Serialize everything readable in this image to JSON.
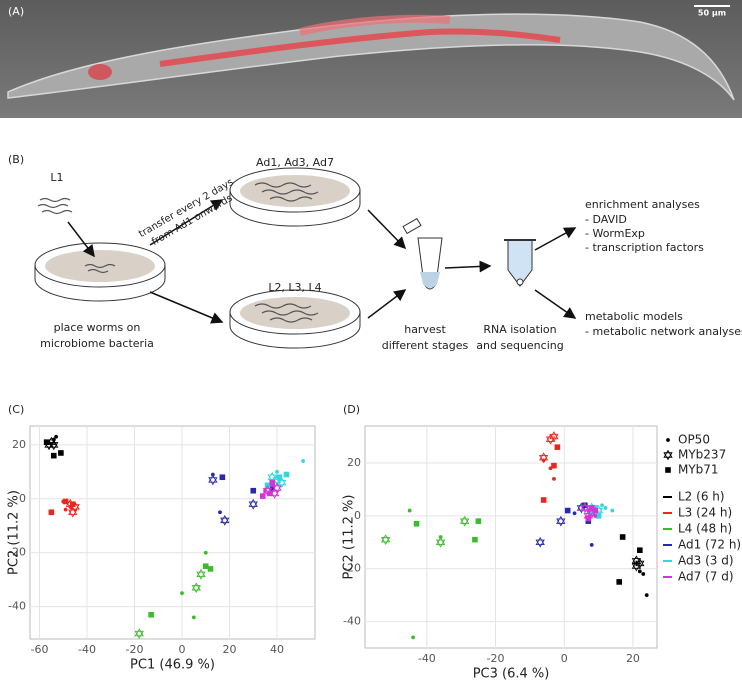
{
  "panel_a": {
    "label": "(A)",
    "scale_bar": "50 µm"
  },
  "panel_b": {
    "label": "(B)",
    "start_stage": "L1",
    "transfer": [
      "transfer every 2 days",
      "from Ad1 onwards"
    ],
    "adult_stages": "Ad1, Ad3, Ad7",
    "larval_stages": "L2, L3, L4",
    "place": [
      "place worms on",
      "microbiome bacteria"
    ],
    "harvest": [
      "harvest",
      "different stages"
    ],
    "rna": [
      "RNA isolation",
      "and sequencing"
    ],
    "enrichment": [
      "enrichment analyses",
      "- DAVID",
      "- WormExp",
      "- transcription factors"
    ],
    "metabolic": [
      "metabolic models",
      "- metabolic network analyses"
    ]
  },
  "chart_data": [
    {
      "type": "scatter",
      "label": "(C)",
      "x_label": "PC1 (46.9 %)",
      "y_label": "PC2 (11.2 %)",
      "xlim": [
        -64,
        56
      ],
      "ylim": [
        -52,
        27
      ],
      "xticks": [
        -60,
        -40,
        -20,
        0,
        20,
        40
      ],
      "yticks": [
        -40,
        -20,
        0,
        20
      ],
      "grid": true,
      "series": [
        {
          "color": "#000000",
          "x": [
            -57,
            -54,
            -53,
            -55,
            -56,
            -54,
            -54,
            -51,
            -57
          ],
          "y": [
            21,
            22,
            23,
            21,
            20,
            20,
            16,
            17,
            21
          ],
          "markers": [
            "OP50",
            "OP50",
            "OP50",
            "MYb237",
            "MYb237",
            "MYb237",
            "MYb71",
            "MYb71",
            "MYb71"
          ]
        },
        {
          "color": "#e8281e",
          "x": [
            -47,
            -49,
            -50,
            -45,
            -46,
            -47,
            -49,
            -55,
            -46
          ],
          "y": [
            -3,
            -4,
            -1,
            -3,
            -5,
            -2,
            -1,
            -5,
            -2
          ],
          "markers": [
            "OP50",
            "OP50",
            "OP50",
            "MYb237",
            "MYb237",
            "MYb237",
            "MYb71",
            "MYb71",
            "MYb71"
          ]
        },
        {
          "color": "#3cbb2c",
          "x": [
            0,
            5,
            10,
            -18,
            6,
            8,
            -13,
            10,
            12
          ],
          "y": [
            -35,
            -44,
            -20,
            -50,
            -33,
            -28,
            -43,
            -25,
            -26
          ],
          "markers": [
            "OP50",
            "OP50",
            "OP50",
            "MYb237",
            "MYb237",
            "MYb237",
            "MYb71",
            "MYb71",
            "MYb71"
          ]
        },
        {
          "color": "#2a2aa8",
          "x": [
            13,
            16,
            18,
            13,
            30,
            17,
            30,
            38
          ],
          "y": [
            9,
            -5,
            -8,
            7,
            -2,
            8,
            3,
            4
          ],
          "markers": [
            "OP50",
            "OP50",
            "MYb237",
            "MYb237",
            "MYb237",
            "MYb71",
            "MYb71",
            "MYb71"
          ]
        },
        {
          "color": "#33d6e0",
          "x": [
            40,
            51,
            44,
            38,
            40,
            42,
            36,
            41,
            44
          ],
          "y": [
            10,
            14,
            9,
            8,
            7,
            6,
            5,
            8,
            9
          ],
          "markers": [
            "OP50",
            "OP50",
            "OP50",
            "MYb237",
            "MYb237",
            "MYb237",
            "MYb71",
            "MYb71",
            "MYb71"
          ]
        },
        {
          "color": "#d633d6",
          "x": [
            35,
            38,
            36,
            39,
            40,
            37,
            34,
            38
          ],
          "y": [
            3,
            5,
            3,
            2,
            4,
            2,
            1,
            6
          ],
          "markers": [
            "OP50",
            "OP50",
            "MYb237",
            "MYb237",
            "MYb237",
            "MYb71",
            "MYb71",
            "MYb71"
          ]
        }
      ]
    },
    {
      "type": "scatter",
      "label": "(D)",
      "x_label": "PC3 (6.4 %)",
      "y_label": "PC2 (11.2 %)",
      "xlim": [
        -58,
        27
      ],
      "ylim": [
        -50,
        34
      ],
      "xticks": [
        -40,
        -20,
        0,
        20
      ],
      "yticks": [
        -40,
        -20,
        0,
        20
      ],
      "grid": true,
      "marker_legend": [
        {
          "name": "OP50",
          "marker": "dot"
        },
        {
          "name": "MYb237",
          "marker": "star"
        },
        {
          "name": "MYb71",
          "marker": "square"
        }
      ],
      "series": [
        {
          "name": "L2 (6 h)",
          "color": "#000000",
          "x": [
            22,
            24,
            23,
            21,
            21,
            22,
            17,
            22,
            16
          ],
          "y": [
            -21,
            -30,
            -22,
            -17,
            -19,
            -18,
            -8,
            -13,
            -25
          ],
          "markers": [
            "OP50",
            "OP50",
            "OP50",
            "MYb237",
            "MYb237",
            "MYb237",
            "MYb71",
            "MYb71",
            "MYb71"
          ]
        },
        {
          "name": "L3 (24 h)",
          "color": "#e8281e",
          "x": [
            -6,
            -4,
            -3,
            -4,
            -3,
            -6,
            -2,
            -3,
            -6
          ],
          "y": [
            21,
            18,
            14,
            29,
            30,
            22,
            26,
            19,
            6
          ],
          "markers": [
            "OP50",
            "OP50",
            "OP50",
            "MYb237",
            "MYb237",
            "MYb237",
            "MYb71",
            "MYb71",
            "MYb71"
          ]
        },
        {
          "name": "L4 (48 h)",
          "color": "#3cbb2c",
          "x": [
            -44,
            -45,
            -36,
            -52,
            -36,
            -29,
            -43,
            -25,
            -26
          ],
          "y": [
            -46,
            2,
            -8,
            -9,
            -10,
            -2,
            -3,
            -2,
            -9
          ],
          "markers": [
            "OP50",
            "OP50",
            "OP50",
            "MYb237",
            "MYb237",
            "MYb237",
            "MYb71",
            "MYb71",
            "MYb71"
          ]
        },
        {
          "name": "Ad1 (72 h)",
          "color": "#2a2aa8",
          "x": [
            8,
            3,
            -7,
            -1,
            5,
            1,
            7,
            6
          ],
          "y": [
            -11,
            1,
            -10,
            -2,
            3,
            2,
            -2,
            4
          ],
          "markers": [
            "OP50",
            "OP50",
            "MYb237",
            "MYb237",
            "MYb237",
            "MYb71",
            "MYb71",
            "MYb71"
          ]
        },
        {
          "name": "Ad3 (3 d)",
          "color": "#33d6e0",
          "x": [
            14,
            11,
            12,
            10,
            9,
            8,
            8,
            9,
            10
          ],
          "y": [
            2,
            4,
            3,
            2,
            1,
            3,
            1,
            3,
            0
          ],
          "markers": [
            "OP50",
            "OP50",
            "OP50",
            "MYb237",
            "MYb237",
            "MYb237",
            "MYb71",
            "MYb71",
            "MYb71"
          ]
        },
        {
          "name": "Ad7 (7 d)",
          "color": "#d633d6",
          "x": [
            7,
            9,
            8,
            7,
            6,
            7,
            9,
            8
          ],
          "y": [
            2,
            0,
            1,
            0,
            3,
            -1,
            2,
            3
          ],
          "markers": [
            "OP50",
            "OP50",
            "MYb237",
            "MYb237",
            "MYb237",
            "MYb71",
            "MYb71",
            "MYb71"
          ]
        }
      ]
    }
  ]
}
